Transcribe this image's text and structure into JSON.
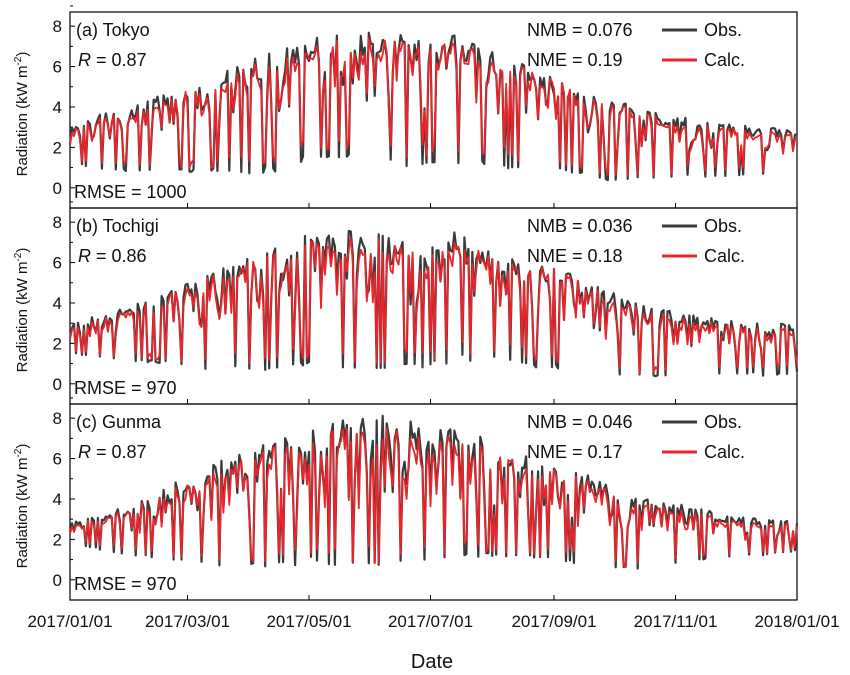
{
  "chart_data": {
    "type": "line",
    "xlabel": "Date",
    "ylabel_main": "Radiation (kW m",
    "ylabel_sup": "-2",
    "ylabel_end": ")",
    "x_range": [
      "2017/01/01",
      "2018/01/01"
    ],
    "x_ticks": [
      "2017/01/01",
      "2017/03/01",
      "2017/05/01",
      "2017/07/01",
      "2017/09/01",
      "2017/11/01",
      "2018/01/01"
    ],
    "ylim": [
      -1,
      8.7
    ],
    "y_ticks": [
      "0",
      "2",
      "4",
      "6",
      "8"
    ],
    "legend": {
      "obs": "Obs.",
      "calc": "Calc."
    },
    "colors": {
      "obs": "#3a3a3a",
      "calc": "#e8262b"
    },
    "panels": [
      {
        "name": "(a) Tokyo",
        "r_label": "R",
        "r_value": "= 0.87",
        "nmb": "NMB = 0.076",
        "nme": "NME = 0.19",
        "rmse": "RMSE = 1000",
        "series": {
          "dates": [
            "2017/01/01",
            "2017/01/15",
            "2017/02/01",
            "2017/02/15",
            "2017/03/01",
            "2017/03/15",
            "2017/04/01",
            "2017/04/15",
            "2017/05/01",
            "2017/05/15",
            "2017/06/01",
            "2017/06/15",
            "2017/07/01",
            "2017/07/15",
            "2017/08/01",
            "2017/08/15",
            "2017/09/01",
            "2017/09/15",
            "2017/10/01",
            "2017/10/15",
            "2017/11/01",
            "2017/11/15",
            "2017/12/01",
            "2017/12/15",
            "2018/01/01"
          ],
          "obs_max": [
            3.0,
            3.6,
            4.0,
            4.6,
            5.0,
            5.6,
            6.3,
            6.8,
            7.4,
            7.7,
            7.8,
            7.6,
            7.2,
            7.7,
            6.8,
            6.2,
            5.5,
            5.0,
            4.4,
            3.9,
            3.6,
            3.3,
            3.1,
            3.0,
            3.0
          ],
          "obs_min": [
            1.2,
            0.9,
            0.8,
            0.8,
            0.7,
            0.8,
            0.7,
            0.8,
            1.4,
            1.5,
            1.3,
            1.0,
            1.0,
            1.2,
            1.1,
            0.8,
            0.9,
            0.6,
            0.3,
            0.4,
            0.5,
            0.5,
            0.6,
            0.6,
            0.7
          ],
          "calc_max": [
            2.8,
            3.4,
            3.8,
            4.3,
            4.8,
            5.4,
            6.0,
            6.5,
            7.0,
            7.3,
            7.4,
            7.2,
            7.0,
            7.2,
            6.5,
            6.0,
            5.3,
            4.8,
            4.2,
            3.7,
            3.3,
            3.1,
            2.9,
            2.8,
            2.8
          ],
          "calc_min": [
            1.3,
            1.2,
            1.2,
            1.0,
            1.0,
            1.0,
            1.1,
            1.3,
            1.8,
            2.0,
            1.8,
            1.5,
            1.6,
            1.8,
            1.6,
            1.3,
            1.3,
            0.9,
            0.6,
            0.6,
            0.7,
            0.8,
            0.9,
            0.8,
            0.8
          ]
        }
      },
      {
        "name": "(b) Tochigi",
        "r_label": "R",
        "r_value": "= 0.86",
        "nmb": "NMB = 0.036",
        "nme": "NME = 0.18",
        "rmse": "RMSE = 970",
        "series": {
          "dates": [
            "2017/01/01",
            "2017/01/15",
            "2017/02/01",
            "2017/02/15",
            "2017/03/01",
            "2017/03/15",
            "2017/04/01",
            "2017/04/15",
            "2017/05/01",
            "2017/05/15",
            "2017/06/01",
            "2017/06/15",
            "2017/07/01",
            "2017/07/15",
            "2017/08/01",
            "2017/08/15",
            "2017/09/01",
            "2017/09/15",
            "2017/10/01",
            "2017/10/15",
            "2017/11/01",
            "2017/11/15",
            "2017/12/01",
            "2017/12/15",
            "2018/01/01"
          ],
          "obs_max": [
            3.0,
            3.4,
            3.9,
            4.5,
            5.0,
            5.7,
            6.3,
            6.8,
            7.5,
            7.8,
            7.6,
            7.5,
            7.3,
            7.6,
            6.6,
            6.0,
            5.8,
            5.2,
            4.5,
            3.9,
            3.6,
            3.3,
            3.1,
            3.0,
            3.0
          ],
          "obs_min": [
            1.5,
            1.3,
            1.1,
            1.0,
            0.8,
            0.7,
            0.6,
            0.7,
            0.9,
            0.8,
            0.6,
            0.7,
            0.8,
            1.1,
            1.2,
            0.9,
            0.7,
            0.6,
            0.4,
            0.3,
            0.4,
            0.5,
            0.5,
            0.4,
            0.5
          ],
          "calc_max": [
            2.8,
            3.2,
            3.7,
            4.2,
            4.8,
            5.4,
            6.0,
            6.5,
            7.0,
            7.3,
            7.2,
            7.1,
            7.0,
            7.3,
            6.2,
            5.8,
            5.7,
            5.0,
            4.3,
            3.7,
            3.3,
            3.1,
            2.9,
            2.8,
            2.8
          ],
          "calc_min": [
            1.6,
            1.4,
            1.3,
            1.2,
            1.1,
            1.0,
            0.9,
            1.0,
            1.3,
            1.1,
            1.0,
            1.1,
            1.2,
            1.4,
            1.6,
            1.3,
            1.1,
            0.9,
            0.6,
            0.5,
            0.7,
            0.8,
            0.8,
            0.8,
            0.9
          ]
        }
      },
      {
        "name": "(c) Gunma",
        "r_label": "R",
        "r_value": "= 0.87",
        "nmb": "NMB = 0.046",
        "nme": "NME = 0.17",
        "rmse": "RMSE = 970",
        "series": {
          "dates": [
            "2017/01/01",
            "2017/01/15",
            "2017/02/01",
            "2017/02/15",
            "2017/03/01",
            "2017/03/15",
            "2017/04/01",
            "2017/04/15",
            "2017/05/01",
            "2017/05/15",
            "2017/06/01",
            "2017/06/15",
            "2017/07/01",
            "2017/07/15",
            "2017/08/01",
            "2017/08/15",
            "2017/09/01",
            "2017/09/15",
            "2017/10/01",
            "2017/10/15",
            "2017/11/01",
            "2017/11/15",
            "2017/12/01",
            "2017/12/15",
            "2018/01/01"
          ],
          "obs_max": [
            2.9,
            3.3,
            3.8,
            4.5,
            5.1,
            5.8,
            6.4,
            7.0,
            7.6,
            7.9,
            8.3,
            8.0,
            7.6,
            7.4,
            6.9,
            6.3,
            5.8,
            5.3,
            4.6,
            4.1,
            3.8,
            3.5,
            3.2,
            3.0,
            3.0
          ],
          "obs_min": [
            1.8,
            1.5,
            1.2,
            1.0,
            0.9,
            0.7,
            0.6,
            0.6,
            0.8,
            0.7,
            0.5,
            0.6,
            1.0,
            1.0,
            1.1,
            1.0,
            0.9,
            0.8,
            0.5,
            0.5,
            0.8,
            1.0,
            1.1,
            1.2,
            1.4
          ],
          "calc_max": [
            2.7,
            3.1,
            3.6,
            4.2,
            4.8,
            5.4,
            6.1,
            6.6,
            7.1,
            7.4,
            7.6,
            7.4,
            7.2,
            7.0,
            6.5,
            6.0,
            5.5,
            5.0,
            4.4,
            3.9,
            3.5,
            3.2,
            3.0,
            2.8,
            2.8
          ],
          "calc_min": [
            1.9,
            1.7,
            1.4,
            1.2,
            1.1,
            1.0,
            0.9,
            0.9,
            1.1,
            1.0,
            0.8,
            0.9,
            1.2,
            1.3,
            1.4,
            1.3,
            1.1,
            1.0,
            0.6,
            0.6,
            1.0,
            1.2,
            1.3,
            1.3,
            1.5
          ]
        }
      }
    ]
  }
}
